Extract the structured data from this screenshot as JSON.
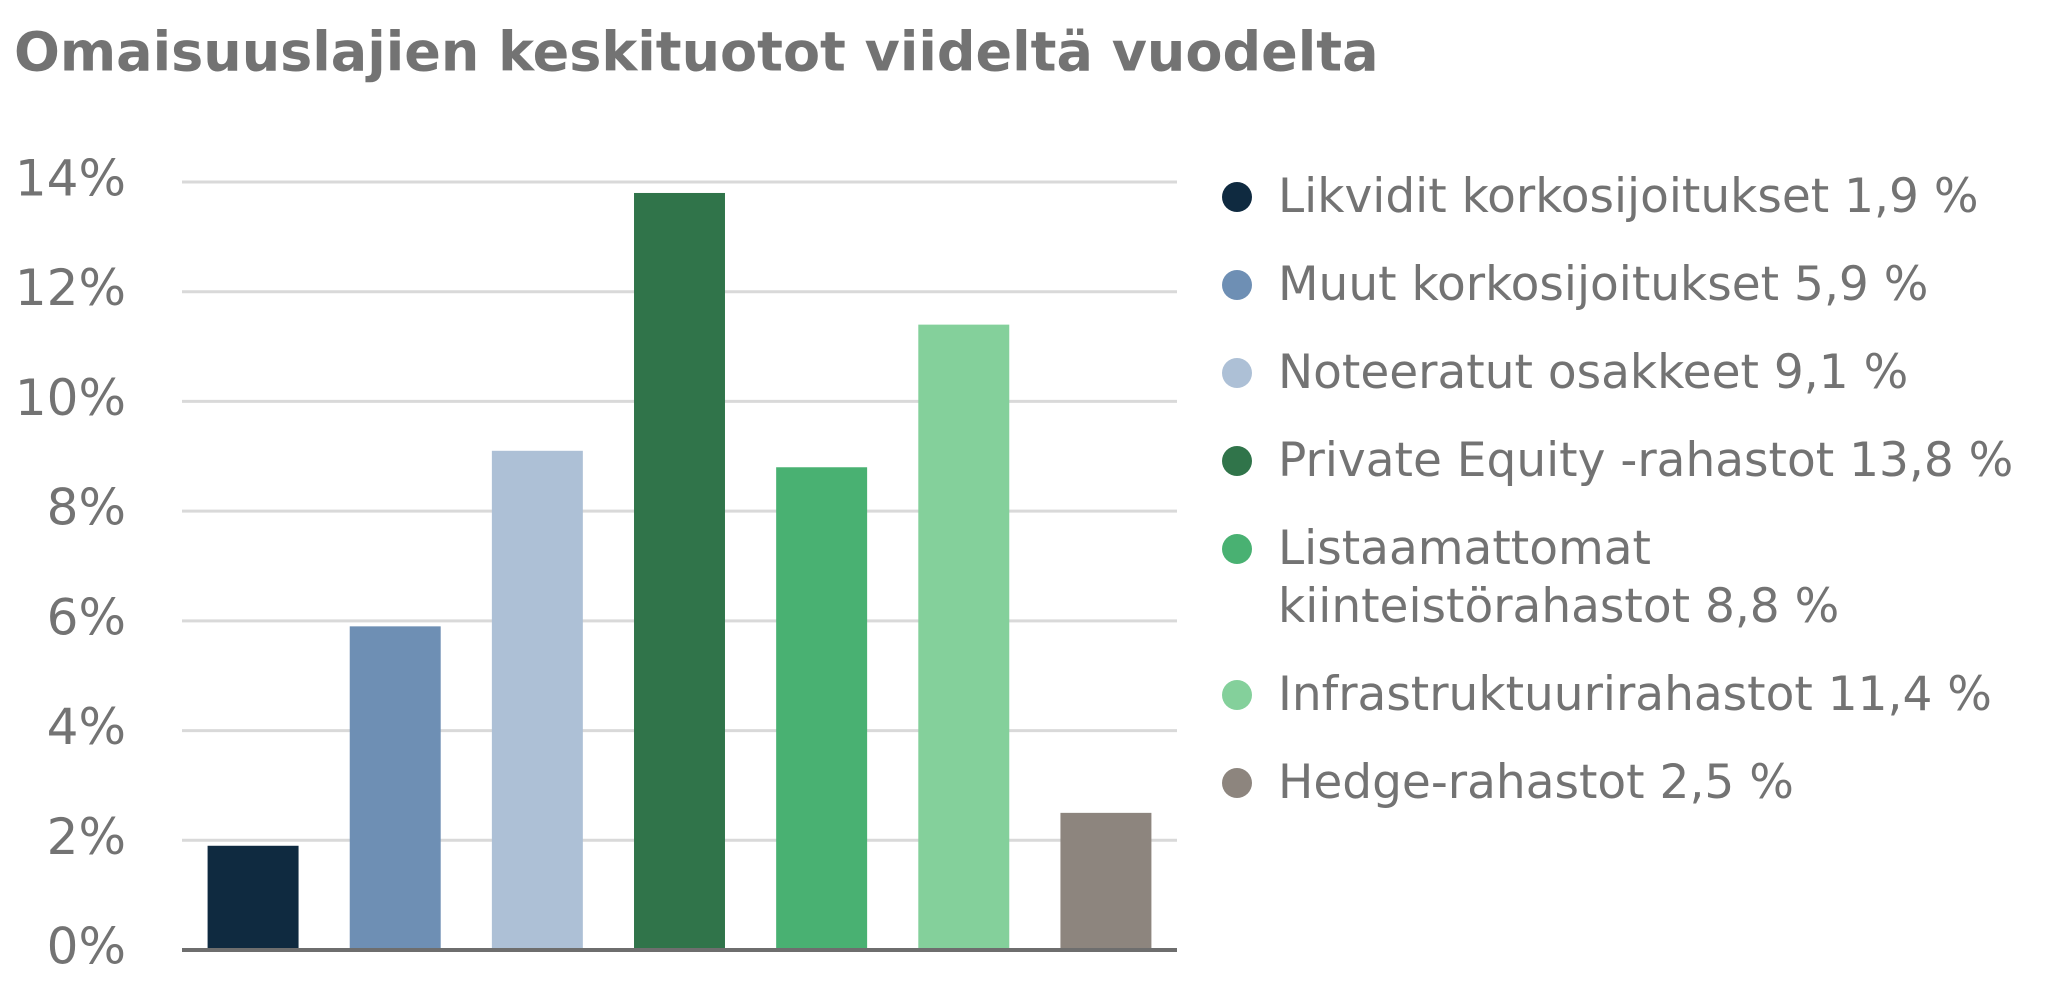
{
  "chart_data": {
    "type": "bar",
    "title": "Omaisuuslajien keskituotot viideltä vuodelta",
    "categories": [
      "Likvidit korkosijoitukset 1,9 %",
      "Muut korkosijoitukset 5,9 %",
      "Noteeratut osakkeet 9,1 %",
      "Private Equity -rahastot 13,8 %",
      "Listaamattomat kiinteistörahastot 8,8 %",
      "Infrastruktuurirahastot 11,4 %",
      "Hedge-rahastot 2,5 %"
    ],
    "values": [
      1.9,
      5.9,
      9.1,
      13.8,
      8.8,
      11.4,
      2.5
    ],
    "colors": [
      "#0f2a40",
      "#6e8fb4",
      "#adc0d6",
      "#30744a",
      "#49b172",
      "#84d09b",
      "#8d857e"
    ],
    "ylim": [
      0,
      14
    ],
    "yticks": [
      {
        "value": 0,
        "label": "0%"
      },
      {
        "value": 2,
        "label": "2%"
      },
      {
        "value": 4,
        "label": "4%"
      },
      {
        "value": 6,
        "label": "6%"
      },
      {
        "value": 8,
        "label": "8%"
      },
      {
        "value": 10,
        "label": "10%"
      },
      {
        "value": 12,
        "label": "12%"
      },
      {
        "value": 14,
        "label": "14%"
      }
    ],
    "grid": true,
    "legend": "right"
  }
}
